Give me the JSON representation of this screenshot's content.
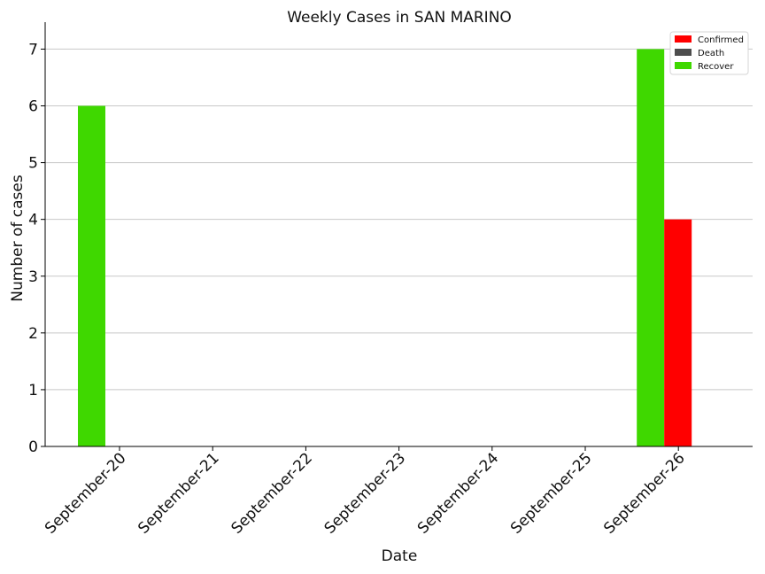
{
  "chart_data": {
    "type": "bar",
    "title": "Weekly Cases in SAN MARINO",
    "xlabel": "Date",
    "ylabel": "Number of cases",
    "categories": [
      "September-20",
      "September-21",
      "September-22",
      "September-23",
      "September-24",
      "September-25",
      "September-26"
    ],
    "series": [
      {
        "name": "Confirmed",
        "color": "#ff0000",
        "values": [
          0,
          0,
          0,
          0,
          0,
          0,
          4
        ]
      },
      {
        "name": "Death",
        "color": "#4d4d4d",
        "values": [
          0,
          0,
          0,
          0,
          0,
          0,
          0
        ]
      },
      {
        "name": "Recover",
        "color": "#3fd800",
        "values": [
          6,
          0,
          0,
          0,
          0,
          0,
          7
        ]
      }
    ],
    "ylim": [
      0,
      7.35
    ],
    "yticks": [
      0,
      1,
      2,
      3,
      4,
      5,
      6,
      7
    ],
    "grid": "horizontal",
    "legend_position": "top-right"
  }
}
